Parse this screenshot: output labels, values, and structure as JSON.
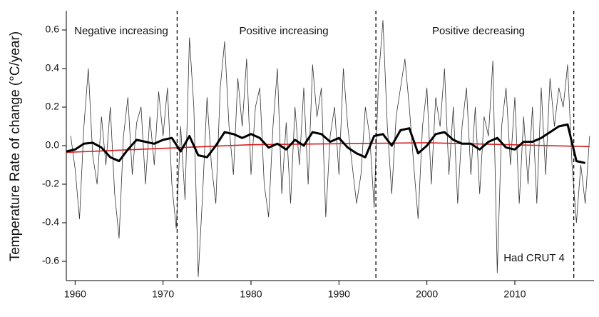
{
  "chart_data": {
    "type": "line",
    "y_label": "Temperature Rate of change (°C/year)",
    "xlim": [
      1959,
      2019
    ],
    "ylim": [
      -0.7,
      0.7
    ],
    "xticks": [
      1960,
      1970,
      1980,
      1990,
      2000,
      2010
    ],
    "yticks": [
      0.6,
      0.4,
      0.2,
      {
        "value": 0,
        "label": "0.0"
      },
      -0.2,
      -0.4,
      -0.6
    ],
    "vlines": [
      1971.6,
      1994.2,
      2016.7
    ],
    "annotations": [
      "Negative increasing",
      "Positive increasing",
      "Positive decreasing",
      "Had CRUT 4"
    ],
    "series": [
      {
        "color": "#333333",
        "width": 0.8,
        "x": [
          1959.5,
          1960,
          1960.5,
          1961,
          1961.5,
          1962,
          1962.5,
          1963,
          1963.5,
          1964,
          1964.5,
          1965,
          1965.5,
          1966,
          1966.5,
          1967,
          1967.5,
          1968,
          1968.5,
          1969,
          1969.5,
          1970,
          1970.5,
          1971,
          1971.5,
          1972,
          1972.5,
          1973,
          1973.5,
          1974,
          1974.5,
          1975,
          1975.5,
          1976,
          1976.5,
          1977,
          1977.5,
          1978,
          1978.5,
          1979,
          1979.5,
          1980,
          1980.5,
          1981,
          1981.5,
          1982,
          1982.5,
          1983,
          1983.5,
          1984,
          1984.5,
          1985,
          1985.5,
          1986,
          1986.5,
          1987,
          1987.5,
          1988,
          1988.5,
          1989,
          1989.5,
          1990,
          1990.5,
          1991,
          1991.5,
          1992,
          1992.5,
          1993,
          1993.5,
          1994,
          1994.5,
          1995,
          1995.5,
          1996,
          1996.5,
          1997,
          1997.5,
          1998,
          1998.5,
          1999,
          1999.5,
          2000,
          2000.5,
          2001,
          2001.5,
          2002,
          2002.5,
          2003,
          2003.5,
          2004,
          2004.5,
          2005,
          2005.5,
          2006,
          2006.5,
          2007,
          2007.5,
          2008,
          2008.5,
          2009,
          2009.5,
          2010,
          2010.5,
          2011,
          2011.5,
          2012,
          2012.5,
          2013,
          2013.5,
          2014,
          2014.5,
          2015,
          2015.5,
          2016,
          2016.5,
          2017,
          2017.5,
          2018,
          2018.5
        ],
        "values": [
          0.05,
          -0.12,
          -0.38,
          0.1,
          0.4,
          -0.05,
          -0.2,
          0.15,
          -0.1,
          0.2,
          -0.25,
          -0.48,
          0.05,
          0.25,
          -0.15,
          0.12,
          0.2,
          -0.2,
          0.15,
          -0.1,
          0.28,
          0.05,
          0.3,
          -0.2,
          -0.43,
          0.1,
          -0.28,
          0.56,
          0.2,
          -0.68,
          -0.25,
          0.25,
          -0.1,
          -0.3,
          0.3,
          0.54,
          0.1,
          -0.15,
          0.35,
          0.1,
          0.45,
          -0.15,
          0.2,
          0.3,
          -0.2,
          -0.37,
          0.1,
          0.4,
          -0.25,
          0.12,
          -0.3,
          0.2,
          -0.1,
          0.3,
          -0.2,
          0.42,
          0.15,
          0.3,
          -0.37,
          0.05,
          0.2,
          -0.15,
          0.4,
          0.1,
          -0.1,
          -0.3,
          -0.15,
          0.2,
          0.05,
          -0.32,
          0.35,
          0.65,
          0.1,
          -0.25,
          0.15,
          0.3,
          0.45,
          0.2,
          -0.1,
          -0.38,
          0.1,
          0.3,
          -0.2,
          0.25,
          0.1,
          0.4,
          -0.15,
          0.2,
          -0.3,
          0.1,
          0.3,
          -0.15,
          0.2,
          -0.25,
          0.15,
          0.05,
          0.44,
          -0.66,
          0.1,
          0.3,
          -0.1,
          0.25,
          -0.3,
          0.15,
          -0.2,
          0.2,
          -0.3,
          0.3,
          -0.15,
          0.35,
          0.1,
          0.3,
          0.2,
          0.42,
          -0.1,
          -0.4,
          -0.1,
          -0.3,
          0.05
        ]
      },
      {
        "color": "#d62020",
        "width": 1.6,
        "x": [
          1959,
          1980,
          2000,
          2018.5
        ],
        "values": [
          -0.035,
          0.005,
          0.015,
          -0.005
        ]
      },
      {
        "color": "#000000",
        "width": 3,
        "x": [
          1959,
          1960,
          1961,
          1962,
          1963,
          1964,
          1965,
          1966,
          1967,
          1968,
          1969,
          1970,
          1971,
          1972,
          1973,
          1974,
          1975,
          1976,
          1977,
          1978,
          1979,
          1980,
          1981,
          1982,
          1983,
          1984,
          1985,
          1986,
          1987,
          1988,
          1989,
          1990,
          1991,
          1992,
          1993,
          1994,
          1995,
          1996,
          1997,
          1998,
          1999,
          2000,
          2001,
          2002,
          2003,
          2004,
          2005,
          2006,
          2007,
          2008,
          2009,
          2010,
          2011,
          2012,
          2013,
          2014,
          2015,
          2016,
          2017,
          2018
        ],
        "values": [
          -0.03,
          -0.02,
          0.01,
          0.015,
          -0.01,
          -0.06,
          -0.08,
          -0.02,
          0.03,
          0.02,
          0.01,
          0.03,
          0.04,
          -0.03,
          0.05,
          -0.05,
          -0.06,
          0.0,
          0.07,
          0.06,
          0.04,
          0.06,
          0.04,
          -0.01,
          0.01,
          -0.02,
          0.03,
          0.0,
          0.07,
          0.06,
          0.02,
          0.04,
          -0.01,
          -0.04,
          -0.06,
          0.05,
          0.06,
          0.0,
          0.08,
          0.09,
          -0.04,
          0.0,
          0.06,
          0.07,
          0.03,
          0.01,
          0.01,
          -0.02,
          0.02,
          0.04,
          -0.01,
          -0.02,
          0.02,
          0.02,
          0.04,
          0.07,
          0.1,
          0.11,
          -0.08,
          -0.09
        ]
      }
    ]
  }
}
